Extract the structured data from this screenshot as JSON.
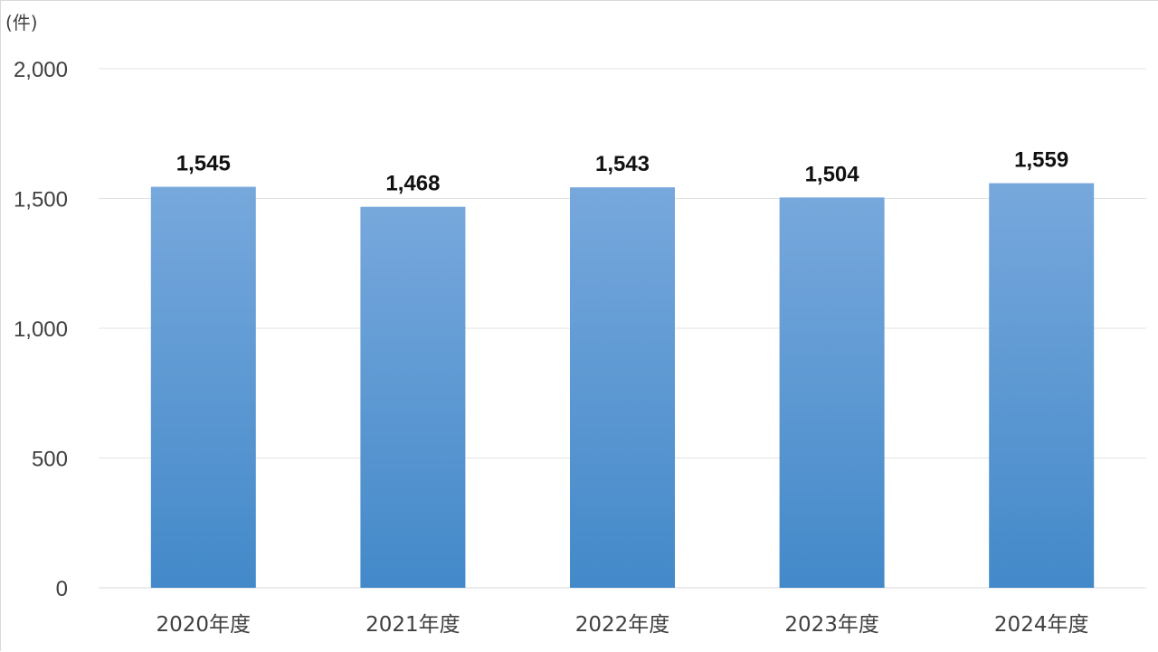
{
  "unit": "(件)",
  "colors": {
    "bar_top": "#77a8dc",
    "bar_bottom": "#4389c9",
    "grid": "#e3e3e3",
    "axis": "#d9d9d9"
  },
  "chart_data": {
    "type": "bar",
    "categories": [
      "2020年度",
      "2021年度",
      "2022年度",
      "2023年度",
      "2024年度"
    ],
    "values": [
      1545,
      1468,
      1543,
      1504,
      1559
    ],
    "data_labels": [
      "1,545",
      "1,468",
      "1,543",
      "1,504",
      "1,559"
    ],
    "ylim": [
      0,
      2000
    ],
    "yticks": [
      0,
      500,
      1000,
      1500,
      2000
    ],
    "ytick_labels": [
      "0",
      "500",
      "1,000",
      "1,500",
      "2,000"
    ],
    "grid": true,
    "legend": "none",
    "title": "",
    "xlabel": "",
    "ylabel": ""
  }
}
